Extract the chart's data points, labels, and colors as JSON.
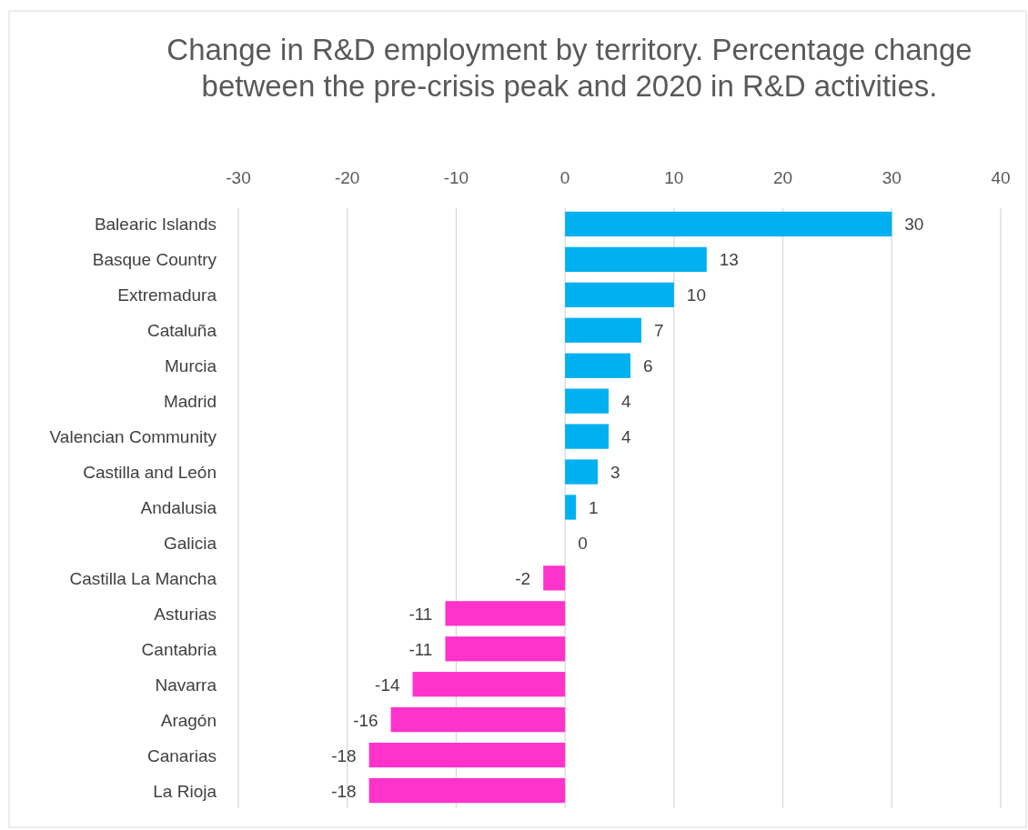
{
  "chart_data": {
    "type": "bar",
    "orientation": "horizontal",
    "title": "Change in R&D employment by territory. Percentage change between the pre-crisis peak and 2020 in R&D activities.",
    "categories": [
      "Balearic Islands",
      "Basque Country",
      "Extremadura",
      "Cataluña",
      "Murcia",
      "Madrid",
      "Valencian Community",
      "Castilla and León",
      "Andalusia",
      "Galicia",
      "Castilla La Mancha",
      "Asturias",
      "Cantabria",
      "Navarra",
      "Aragón",
      "Canarias",
      "La Rioja"
    ],
    "values": [
      30,
      13,
      10,
      7,
      6,
      4,
      4,
      3,
      1,
      0,
      -2,
      -11,
      -11,
      -14,
      -16,
      -18,
      -18
    ],
    "colors": [
      "#00b0f0",
      "#00b0f0",
      "#00b0f0",
      "#00b0f0",
      "#00b0f0",
      "#00b0f0",
      "#00b0f0",
      "#00b0f0",
      "#00b0f0",
      "#00b0f0",
      "#ff33cc",
      "#ff33cc",
      "#ff33cc",
      "#ff33cc",
      "#ff33cc",
      "#ff33cc",
      "#ff33cc"
    ],
    "xlim": [
      -30,
      40
    ],
    "xticks": [
      -30,
      -20,
      -10,
      0,
      10,
      20,
      30,
      40
    ],
    "grid": "x",
    "data_labels": true
  }
}
